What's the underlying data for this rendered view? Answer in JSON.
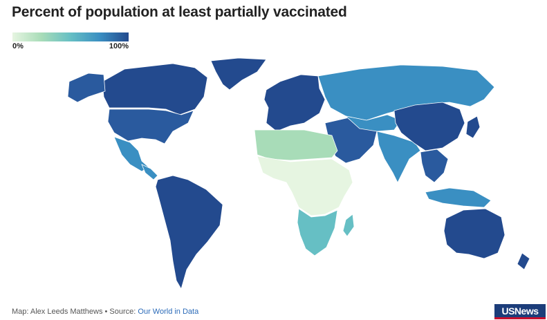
{
  "title": "Percent of population at least partially vaccinated",
  "legend": {
    "min_label": "0%",
    "max_label": "100%",
    "colors": [
      "#e6f5e1",
      "#a8dcb8",
      "#66bfc4",
      "#3a8fc2",
      "#234a8e"
    ]
  },
  "regions": [
    {
      "name": "Greenland",
      "fill": "#234a8e"
    },
    {
      "name": "Canada",
      "fill": "#234a8e"
    },
    {
      "name": "United States",
      "fill": "#2a5a9e"
    },
    {
      "name": "Mexico",
      "fill": "#3a8fc2"
    },
    {
      "name": "Central America",
      "fill": "#3a8fc2"
    },
    {
      "name": "South America",
      "fill": "#234a8e"
    },
    {
      "name": "Europe",
      "fill": "#234a8e"
    },
    {
      "name": "Russia",
      "fill": "#3a8fc2"
    },
    {
      "name": "Middle East",
      "fill": "#2a5a9e"
    },
    {
      "name": "North Africa",
      "fill": "#a8dcb8"
    },
    {
      "name": "Central Africa",
      "fill": "#e6f5e1"
    },
    {
      "name": "Southern Africa",
      "fill": "#66bfc4"
    },
    {
      "name": "India",
      "fill": "#3a8fc2"
    },
    {
      "name": "China",
      "fill": "#234a8e"
    },
    {
      "name": "Southeast Asia",
      "fill": "#2a5a9e"
    },
    {
      "name": "Indonesia",
      "fill": "#3a8fc2"
    },
    {
      "name": "Australia",
      "fill": "#234a8e"
    }
  ],
  "footer": {
    "credit": "Map: Alex Leeds Matthews • Source: ",
    "source_link": "Our World in Data",
    "logo": "USNews"
  }
}
